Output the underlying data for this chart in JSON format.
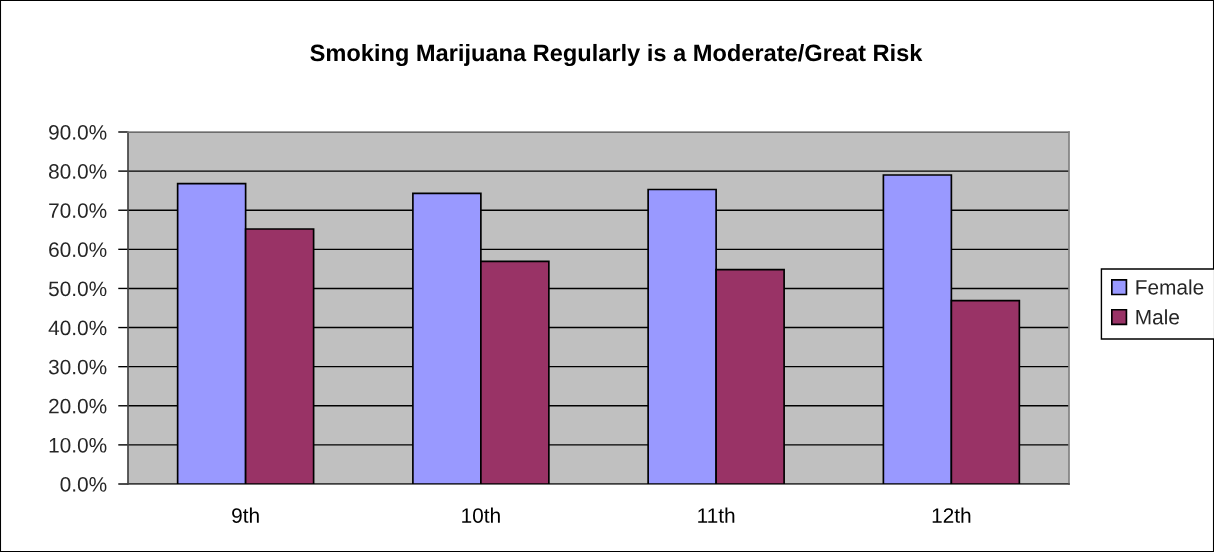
{
  "chart_data": {
    "type": "bar",
    "title": "Smoking Marijuana Regularly is a Moderate/Great Risk",
    "categories": [
      "9th",
      "10th",
      "11th",
      "12th"
    ],
    "series": [
      {
        "name": "Female",
        "color": "#9999ff",
        "values": [
          76.8,
          74.3,
          75.3,
          79.0
        ]
      },
      {
        "name": "Male",
        "color": "#993366",
        "values": [
          65.2,
          56.9,
          54.8,
          46.9
        ]
      }
    ],
    "ylim": [
      0,
      90
    ],
    "yticks": [
      {
        "value": 0,
        "label": "0.0%"
      },
      {
        "value": 10,
        "label": "10.0%"
      },
      {
        "value": 20,
        "label": "20.0%"
      },
      {
        "value": 30,
        "label": "30.0%"
      },
      {
        "value": 40,
        "label": "40.0%"
      },
      {
        "value": 50,
        "label": "50.0%"
      },
      {
        "value": 60,
        "label": "60.0%"
      },
      {
        "value": 70,
        "label": "70.0%"
      },
      {
        "value": 80,
        "label": "80.0%"
      },
      {
        "value": 90,
        "label": "90.0%"
      }
    ],
    "grid": "y",
    "legend": "right"
  }
}
